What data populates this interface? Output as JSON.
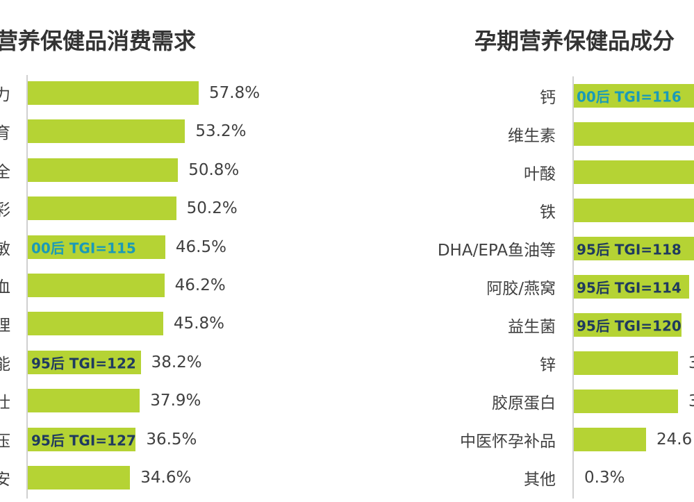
{
  "chart_data": [
    {
      "type": "bar",
      "orientation": "horizontal",
      "title": "营养保健品消费需求",
      "categories": [
        "力",
        "育",
        "全",
        "彩",
        "敏",
        "血",
        "理",
        "能",
        "壮",
        "压",
        "安"
      ],
      "values": [
        57.8,
        53.2,
        50.8,
        50.2,
        46.5,
        46.2,
        45.8,
        38.2,
        37.9,
        36.5,
        34.6
      ],
      "value_labels": [
        "57.8%",
        "53.2%",
        "50.8%",
        "50.2%",
        "46.5%",
        "46.2%",
        "45.8%",
        "38.2%",
        "37.9%",
        "36.5%",
        "34.6%"
      ],
      "annotations": [
        "",
        "",
        "",
        "",
        "00后 TGI=115",
        "",
        "",
        "95后 TGI=122",
        "",
        "95后 TGI=127",
        ""
      ],
      "xlabel": "",
      "ylabel": ""
    },
    {
      "type": "bar",
      "orientation": "horizontal",
      "title": "孕期营养保健品成分",
      "categories": [
        "钙",
        "维生素",
        "叶酸",
        "铁",
        "DHA/EPA鱼油等",
        "阿胶/燕窝",
        "益生菌",
        "锌",
        "胶原蛋白",
        "中医怀孕补品",
        "其他"
      ],
      "values": [
        null,
        null,
        null,
        null,
        null,
        null,
        null,
        null,
        null,
        24.6,
        0.3
      ],
      "value_labels": [
        "",
        "",
        "",
        "",
        "",
        "",
        "",
        "3",
        "3",
        "24.6",
        "0.3%"
      ],
      "annotations": [
        "00后 TGI=116",
        "",
        "",
        "",
        "95后 TGI=118",
        "95后 TGI=114",
        "95后 TGI=120",
        "",
        "",
        "",
        ""
      ],
      "xlabel": "",
      "ylabel": ""
    }
  ],
  "colors": {
    "bar": "#b5d334",
    "tgi_00": "#1a9ab8",
    "tgi_95": "#1f3a5f"
  }
}
